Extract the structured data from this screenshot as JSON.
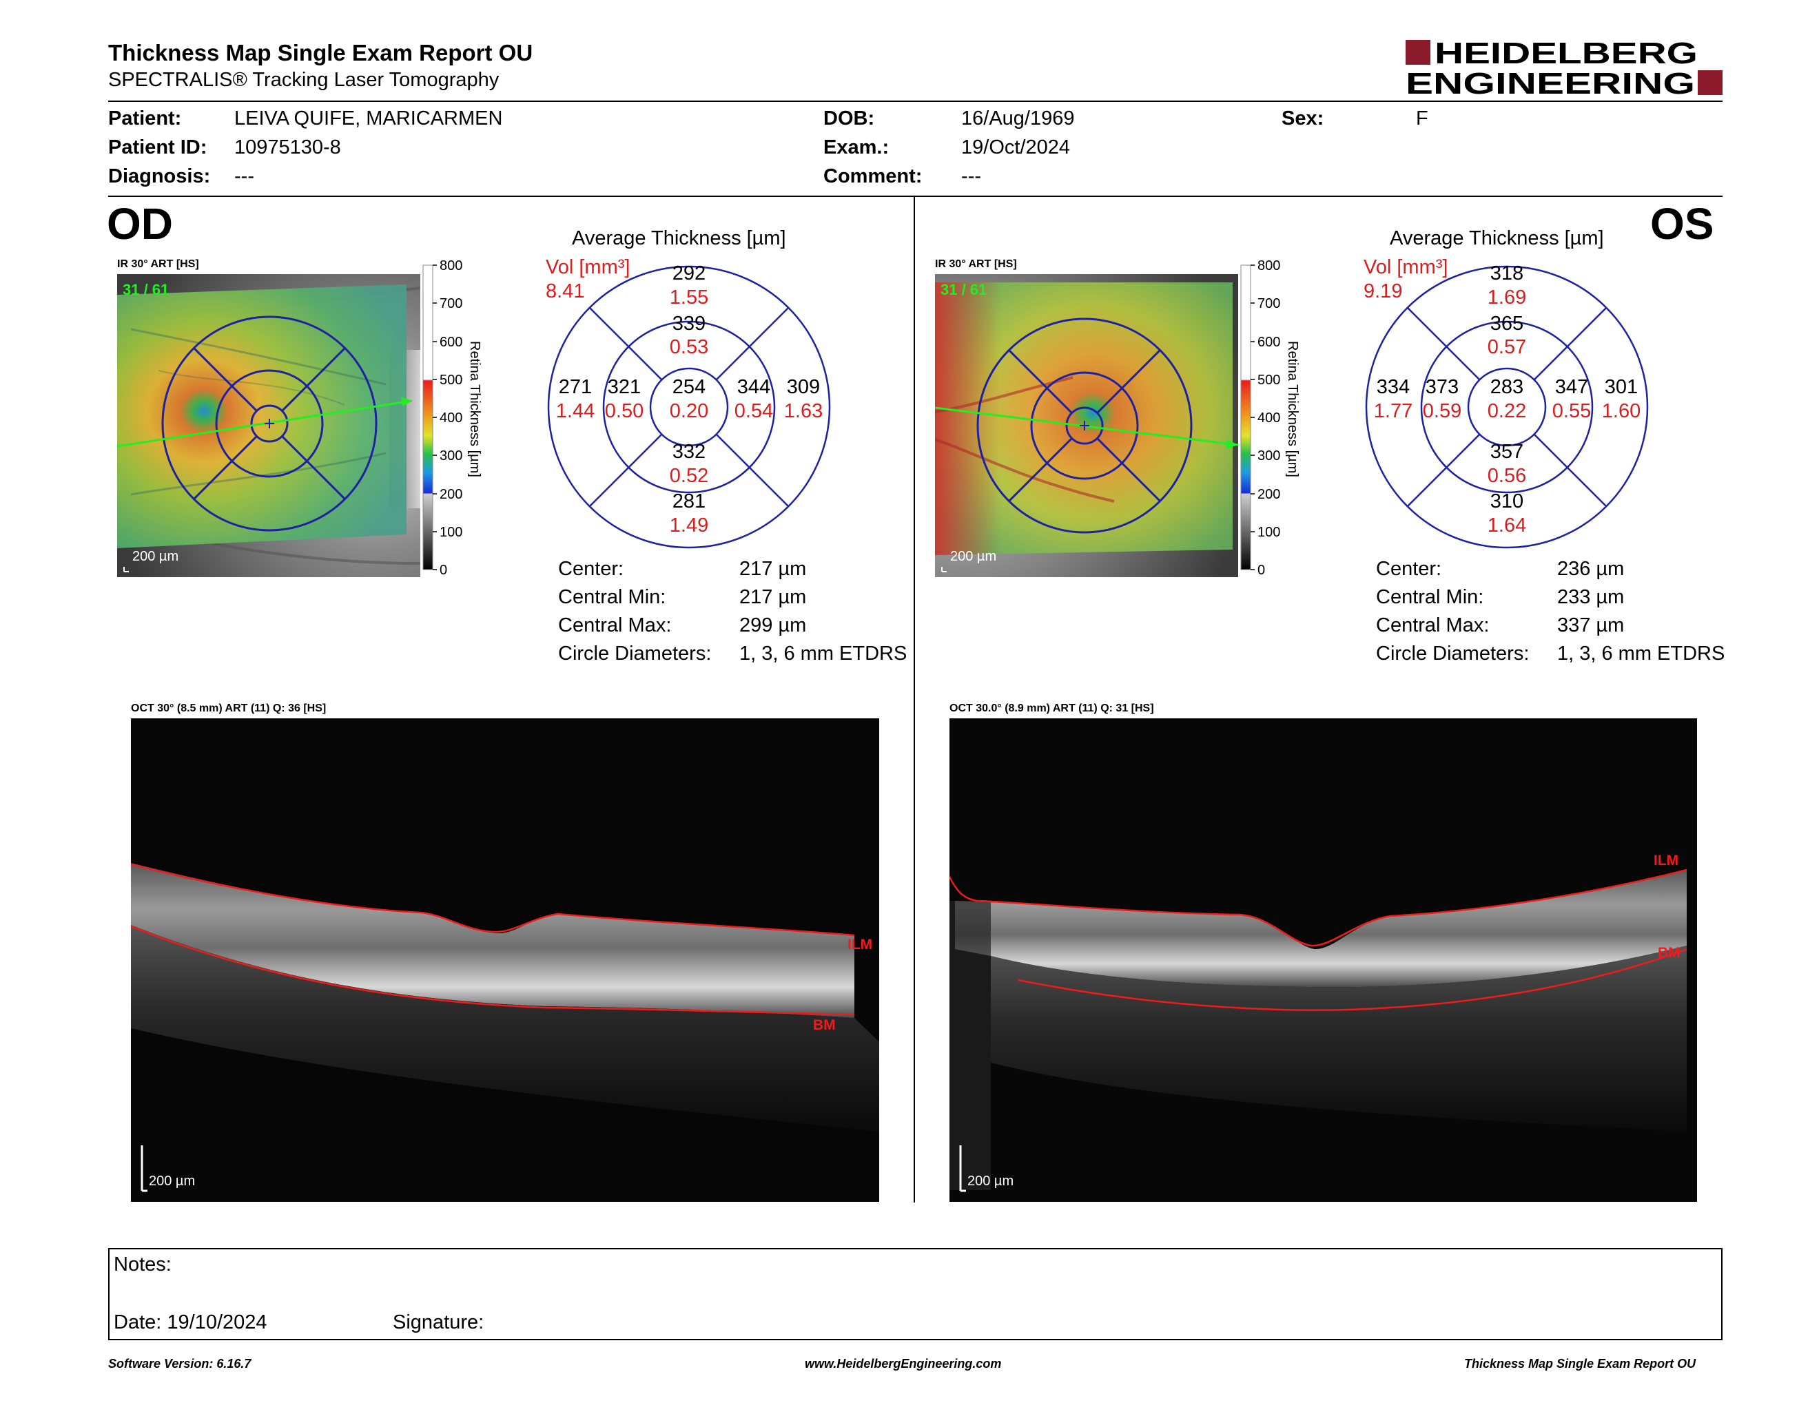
{
  "header": {
    "title": "Thickness Map Single Exam Report OU",
    "subtitle": "SPECTRALIS® Tracking Laser Tomography",
    "logo_line1": "HEIDELBERG",
    "logo_line2": "ENGINEERING",
    "brand_color": "#8b1a2a"
  },
  "patient": {
    "patient_label": "Patient:",
    "patient_value": "LEIVA QUIFE, MARICARMEN",
    "id_label": "Patient ID:",
    "id_value": "10975130-8",
    "diagnosis_label": "Diagnosis:",
    "diagnosis_value": "---",
    "dob_label": "DOB:",
    "dob_value": "16/Aug/1969",
    "exam_label": "Exam.:",
    "exam_value": "19/Oct/2024",
    "comment_label": "Comment:",
    "comment_value": "---",
    "sex_label": "Sex:",
    "sex_value": "F"
  },
  "od": {
    "eye_label": "OD",
    "ir_label": "IR 30° ART [HS]",
    "frame_count": "31 / 61",
    "scale_bar": "200 µm",
    "colorbar_ticks": [
      "800",
      "700",
      "600",
      "500",
      "400",
      "300",
      "200",
      "100",
      "0"
    ],
    "colorbar_label": "Retina Thickness [µm]",
    "avg_title": "Average Thickness [µm]",
    "vol_label": "Vol [mm³]",
    "vol_total": "8.41",
    "grid": {
      "center": {
        "t": "254",
        "v": "0.20"
      },
      "inner_sup": {
        "t": "339",
        "v": "0.53"
      },
      "inner_inf": {
        "t": "332",
        "v": "0.52"
      },
      "inner_temp": {
        "t": "344",
        "v": "0.54"
      },
      "inner_nasal": {
        "t": "321",
        "v": "0.50"
      },
      "outer_sup": {
        "t": "292",
        "v": "1.55"
      },
      "outer_inf": {
        "t": "281",
        "v": "1.49"
      },
      "outer_temp": {
        "t": "309",
        "v": "1.63"
      },
      "outer_nasal": {
        "t": "271",
        "v": "1.44"
      }
    },
    "stats": [
      {
        "label": "Center:",
        "value": "217 µm"
      },
      {
        "label": "Central Min:",
        "value": "217 µm"
      },
      {
        "label": "Central Max:",
        "value": "299 µm"
      },
      {
        "label": "Circle Diameters:",
        "value": "1, 3, 6 mm ETDRS"
      }
    ],
    "oct_label": "OCT 30° (8.5 mm) ART (11) Q: 36 [HS]",
    "ilm_label": "ILM",
    "bm_label": "BM",
    "oct_scale": "200 µm"
  },
  "os": {
    "eye_label": "OS",
    "ir_label": "IR 30° ART [HS]",
    "frame_count": "31 / 61",
    "scale_bar": "200 µm",
    "colorbar_ticks": [
      "800",
      "700",
      "600",
      "500",
      "400",
      "300",
      "200",
      "100",
      "0"
    ],
    "colorbar_label": "Retina Thickness [µm]",
    "avg_title": "Average Thickness [µm]",
    "vol_label": "Vol [mm³]",
    "vol_total": "9.19",
    "grid": {
      "center": {
        "t": "283",
        "v": "0.22"
      },
      "inner_sup": {
        "t": "365",
        "v": "0.57"
      },
      "inner_inf": {
        "t": "357",
        "v": "0.56"
      },
      "inner_temp": {
        "t": "373",
        "v": "0.59"
      },
      "inner_nasal": {
        "t": "347",
        "v": "0.55"
      },
      "outer_sup": {
        "t": "318",
        "v": "1.69"
      },
      "outer_inf": {
        "t": "310",
        "v": "1.64"
      },
      "outer_temp": {
        "t": "334",
        "v": "1.77"
      },
      "outer_nasal": {
        "t": "301",
        "v": "1.60"
      }
    },
    "stats": [
      {
        "label": "Center:",
        "value": "236 µm"
      },
      {
        "label": "Central Min:",
        "value": "233 µm"
      },
      {
        "label": "Central Max:",
        "value": "337 µm"
      },
      {
        "label": "Circle Diameters:",
        "value": "1, 3, 6 mm ETDRS"
      }
    ],
    "oct_label": "OCT 30.0° (8.9 mm) ART (11) Q: 31 [HS]",
    "ilm_label": "ILM",
    "bm_label": "BM",
    "oct_scale": "200 µm"
  },
  "notes": {
    "notes_label": "Notes:",
    "date_label": "Date: 19/10/2024",
    "signature_label": "Signature:"
  },
  "footer": {
    "software": "Software Version: 6.16.7",
    "website": "www.HeidelbergEngineering.com",
    "report_name": "Thickness Map Single Exam Report OU"
  }
}
